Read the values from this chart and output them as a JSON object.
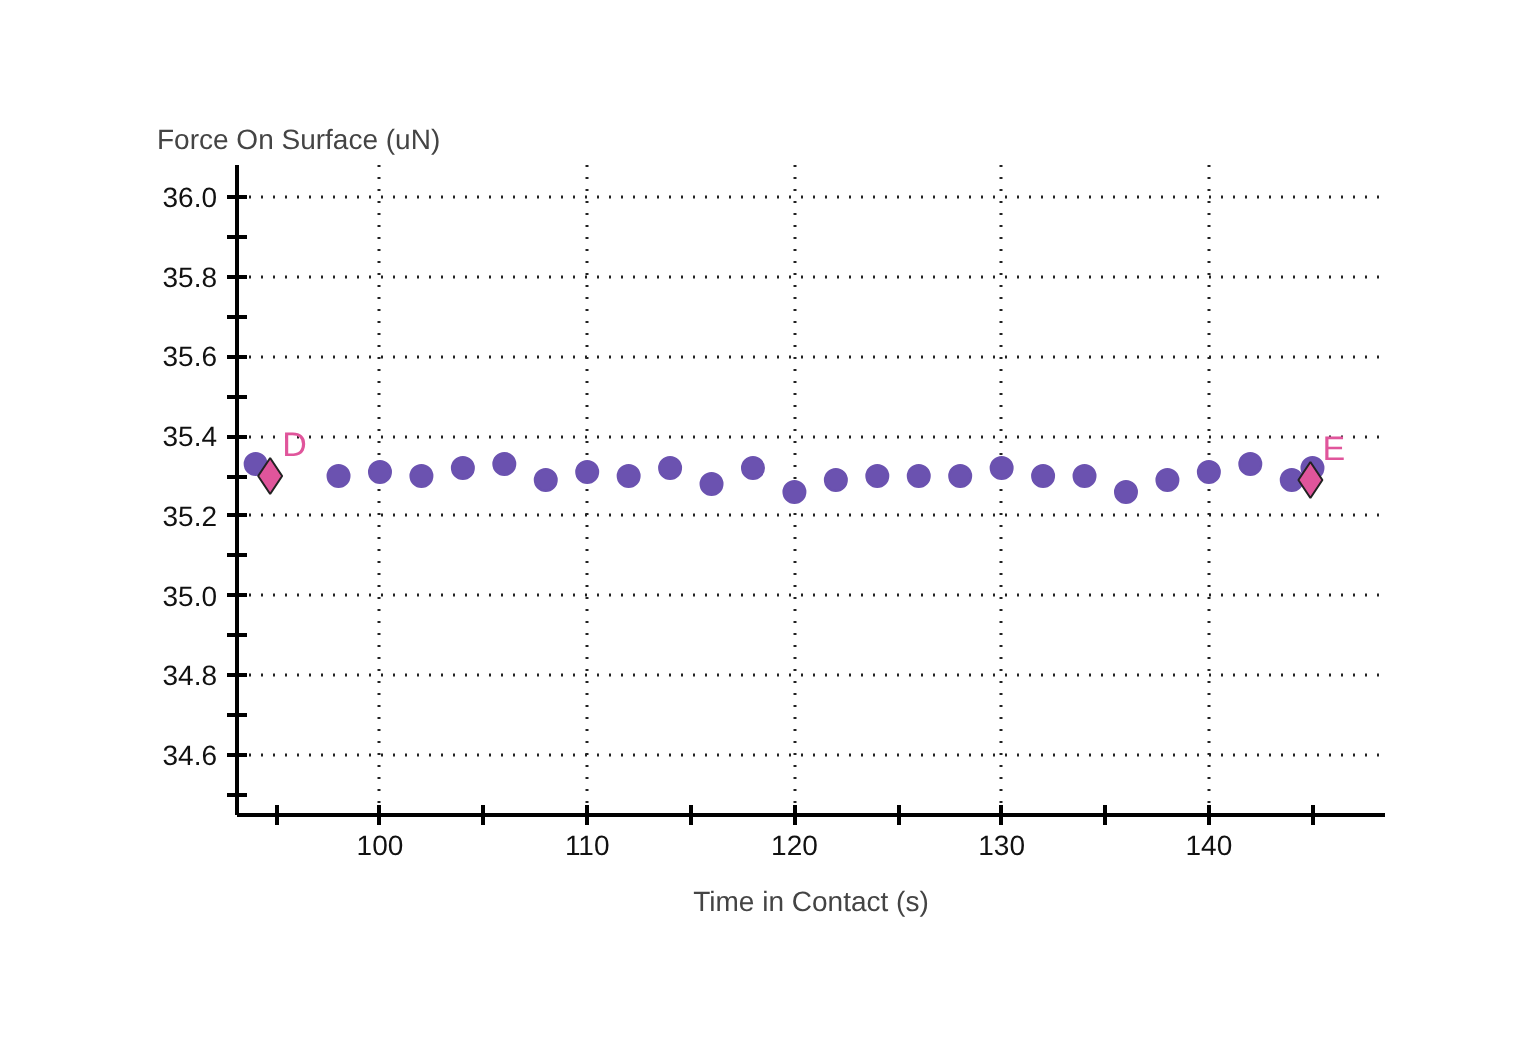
{
  "chart_data": {
    "type": "scatter",
    "ylabel": "Force On Surface (uN)",
    "xlabel": "Time in Contact (s)",
    "xlim": [
      93.1,
      148.5
    ],
    "ylim": [
      34.45,
      36.08
    ],
    "xticks": [
      {
        "value": 95,
        "label": null
      },
      100,
      {
        "value": 105,
        "label": null
      },
      110,
      {
        "value": 115,
        "label": null
      },
      120,
      {
        "value": 125,
        "label": null
      },
      130,
      {
        "value": 135,
        "label": null
      },
      140,
      {
        "value": 145,
        "label": null
      }
    ],
    "yticks": [
      {
        "value": 34.5,
        "label": null
      },
      {
        "value": 34.6,
        "label": "34.6"
      },
      {
        "value": 34.7,
        "label": null
      },
      {
        "value": 34.8,
        "label": "34.8"
      },
      {
        "value": 34.9,
        "label": null
      },
      {
        "value": 35.0,
        "label": "35.0"
      },
      {
        "value": 35.1,
        "label": null
      },
      {
        "value": 35.2,
        "label": "35.2"
      },
      {
        "value": 35.3,
        "label": null
      },
      {
        "value": 35.4,
        "label": "35.4"
      },
      {
        "value": 35.5,
        "label": null
      },
      {
        "value": 35.6,
        "label": "35.6"
      },
      {
        "value": 35.7,
        "label": null
      },
      {
        "value": 35.8,
        "label": "35.8"
      },
      {
        "value": 35.9,
        "label": null
      },
      {
        "value": 36.0,
        "label": "36.0"
      }
    ],
    "grid": true,
    "series": [
      {
        "color": "#6b52b0",
        "marker": "circle",
        "x": [
          94.0,
          98.0,
          100.0,
          102.0,
          104.0,
          106.0,
          108.0,
          110.0,
          112.0,
          114.0,
          116.0,
          118.0,
          120.0,
          122.0,
          124.0,
          126.0,
          128.0,
          130.0,
          132.0,
          134.0,
          136.0,
          138.0,
          140.0,
          142.0,
          144.0,
          145.0
        ],
        "values": [
          35.33,
          35.3,
          35.31,
          35.3,
          35.32,
          35.33,
          35.29,
          35.31,
          35.3,
          35.32,
          35.28,
          35.32,
          35.26,
          35.29,
          35.3,
          35.3,
          35.3,
          35.32,
          35.3,
          35.3,
          35.26,
          35.29,
          35.31,
          35.33,
          35.29,
          35.32
        ]
      },
      {
        "color": "#e0559b",
        "marker": "diamond",
        "x": [
          94.7,
          144.9
        ],
        "values": [
          35.3,
          35.29
        ]
      }
    ],
    "annotations": [
      {
        "text": "D",
        "x": 94.7,
        "y": 35.3
      },
      {
        "text": "E",
        "x": 144.9,
        "y": 35.29
      }
    ]
  }
}
